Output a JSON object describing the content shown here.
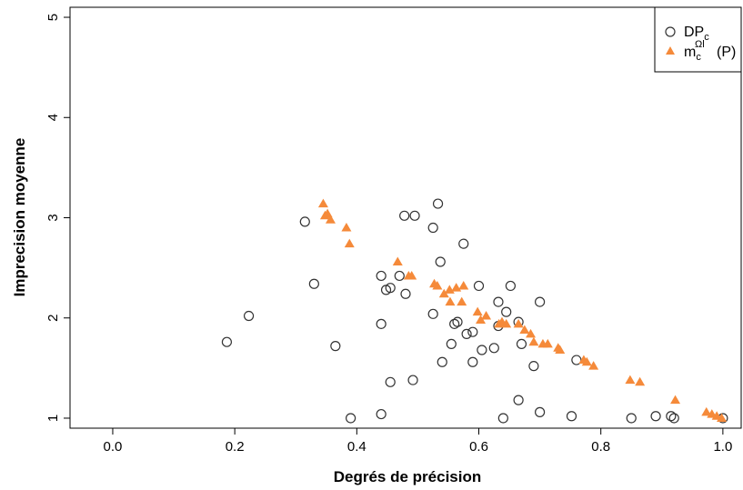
{
  "chart_data": {
    "type": "scatter",
    "xlabel": "Degrés de précision",
    "ylabel": "Imprecision moyenne",
    "xlim": [
      -0.07,
      1.03
    ],
    "ylim": [
      0.9,
      5.1
    ],
    "xticks": [
      "0.0",
      "0.2",
      "0.4",
      "0.6",
      "0.8",
      "1.0"
    ],
    "yticks": [
      "1",
      "2",
      "3",
      "4",
      "5"
    ],
    "grid": false,
    "legend_position": "top-right",
    "series": [
      {
        "name": "DP_c",
        "legend_main": "DP",
        "legend_sub": "c",
        "marker": "open-circle",
        "color": "#333333",
        "points": [
          [
            0.187,
            1.76
          ],
          [
            0.223,
            2.02
          ],
          [
            0.315,
            2.96
          ],
          [
            0.33,
            2.34
          ],
          [
            0.365,
            1.72
          ],
          [
            0.39,
            1.0
          ],
          [
            0.44,
            1.04
          ],
          [
            0.44,
            1.94
          ],
          [
            0.44,
            2.42
          ],
          [
            0.448,
            2.28
          ],
          [
            0.455,
            2.3
          ],
          [
            0.455,
            1.36
          ],
          [
            0.47,
            2.42
          ],
          [
            0.478,
            3.02
          ],
          [
            0.48,
            2.24
          ],
          [
            0.495,
            3.02
          ],
          [
            0.492,
            1.38
          ],
          [
            0.525,
            2.9
          ],
          [
            0.525,
            2.04
          ],
          [
            0.533,
            3.14
          ],
          [
            0.537,
            2.56
          ],
          [
            0.54,
            1.56
          ],
          [
            0.555,
            1.74
          ],
          [
            0.56,
            1.94
          ],
          [
            0.565,
            1.96
          ],
          [
            0.575,
            2.74
          ],
          [
            0.58,
            1.84
          ],
          [
            0.59,
            1.86
          ],
          [
            0.59,
            1.56
          ],
          [
            0.6,
            2.32
          ],
          [
            0.605,
            1.68
          ],
          [
            0.625,
            1.7
          ],
          [
            0.632,
            1.92
          ],
          [
            0.632,
            2.16
          ],
          [
            0.64,
            1.0
          ],
          [
            0.645,
            2.06
          ],
          [
            0.652,
            2.32
          ],
          [
            0.665,
            1.18
          ],
          [
            0.665,
            1.96
          ],
          [
            0.67,
            1.74
          ],
          [
            0.69,
            1.52
          ],
          [
            0.7,
            2.16
          ],
          [
            0.7,
            1.06
          ],
          [
            0.752,
            1.02
          ],
          [
            0.76,
            1.58
          ],
          [
            0.85,
            1.0
          ],
          [
            0.89,
            1.02
          ],
          [
            0.915,
            1.02
          ],
          [
            0.92,
            1.0
          ],
          [
            1.0,
            1.0
          ]
        ]
      },
      {
        "name": "m_c^Ω_l (P)",
        "legend_main": "m",
        "legend_sub": "c",
        "legend_sup": "Ωl",
        "legend_tail": "(P)",
        "marker": "filled-triangle",
        "color": "#F58A3A",
        "points": [
          [
            0.345,
            3.14
          ],
          [
            0.348,
            3.02
          ],
          [
            0.352,
            3.04
          ],
          [
            0.357,
            2.98
          ],
          [
            0.383,
            2.9
          ],
          [
            0.388,
            2.74
          ],
          [
            0.467,
            2.56
          ],
          [
            0.485,
            2.42
          ],
          [
            0.49,
            2.42
          ],
          [
            0.527,
            2.34
          ],
          [
            0.532,
            2.32
          ],
          [
            0.543,
            2.24
          ],
          [
            0.552,
            2.28
          ],
          [
            0.553,
            2.16
          ],
          [
            0.563,
            2.3
          ],
          [
            0.572,
            2.16
          ],
          [
            0.575,
            2.32
          ],
          [
            0.598,
            2.06
          ],
          [
            0.603,
            1.98
          ],
          [
            0.612,
            2.02
          ],
          [
            0.633,
            1.94
          ],
          [
            0.638,
            1.96
          ],
          [
            0.645,
            1.94
          ],
          [
            0.665,
            1.94
          ],
          [
            0.675,
            1.88
          ],
          [
            0.685,
            1.84
          ],
          [
            0.69,
            1.76
          ],
          [
            0.705,
            1.74
          ],
          [
            0.713,
            1.74
          ],
          [
            0.73,
            1.7
          ],
          [
            0.733,
            1.68
          ],
          [
            0.772,
            1.58
          ],
          [
            0.777,
            1.56
          ],
          [
            0.788,
            1.52
          ],
          [
            0.848,
            1.38
          ],
          [
            0.864,
            1.36
          ],
          [
            0.922,
            1.18
          ],
          [
            0.973,
            1.06
          ],
          [
            0.982,
            1.04
          ],
          [
            0.99,
            1.02
          ],
          [
            0.998,
            1.0
          ]
        ]
      }
    ]
  }
}
